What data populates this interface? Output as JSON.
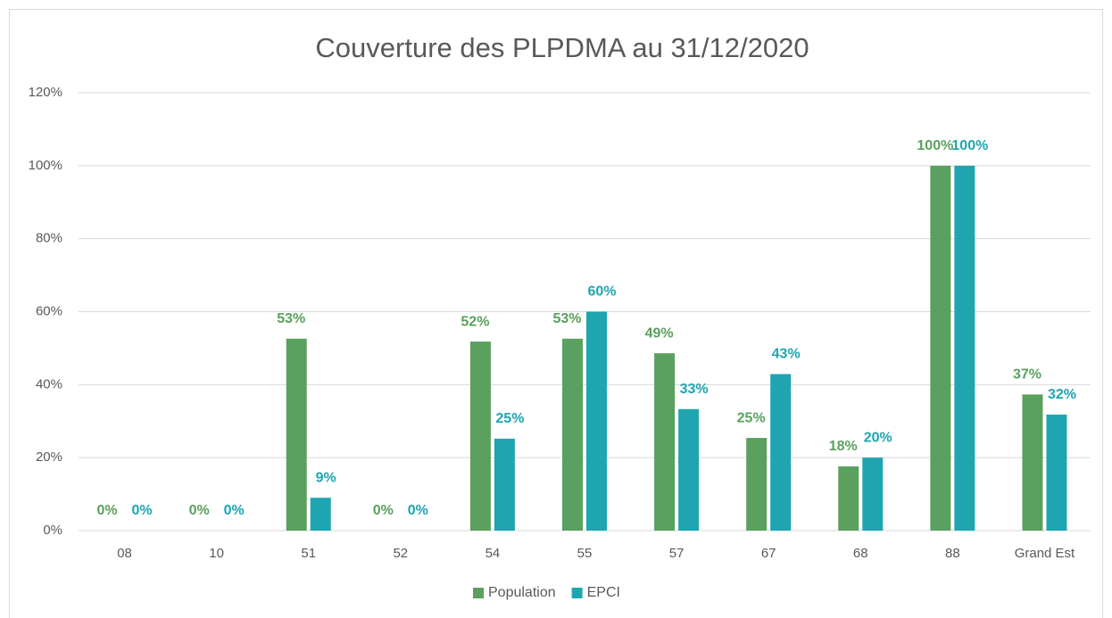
{
  "chart_data": {
    "type": "bar",
    "title": "Couverture des PLPDMA au 31/12/2020",
    "categories": [
      "08",
      "10",
      "51",
      "52",
      "54",
      "55",
      "57",
      "67",
      "68",
      "88",
      "Grand Est"
    ],
    "series": [
      {
        "name": "Population",
        "color": "#5aa05e",
        "values": [
          0,
          0,
          52.6,
          0,
          51.8,
          52.6,
          48.6,
          25.4,
          17.6,
          100,
          37.3
        ],
        "value_labels": [
          "0%",
          "0%",
          "53%",
          "0%",
          "52%",
          "53%",
          "49%",
          "25%",
          "18%",
          "100%",
          "37%"
        ]
      },
      {
        "name": "EPCI",
        "color": "#1fa5b0",
        "values": [
          0,
          0,
          9,
          0,
          25.2,
          60,
          33.3,
          42.9,
          20,
          100,
          31.8
        ],
        "value_labels": [
          "0%",
          "0%",
          "9%",
          "0%",
          "25%",
          "60%",
          "33%",
          "43%",
          "20%",
          "100%",
          "32%"
        ]
      }
    ],
    "ylim": [
      0,
      120
    ],
    "yticks": [
      {
        "value": 0,
        "label": "0%"
      },
      {
        "value": 20,
        "label": "20%"
      },
      {
        "value": 40,
        "label": "40%"
      },
      {
        "value": 60,
        "label": "60%"
      },
      {
        "value": 80,
        "label": "80%"
      },
      {
        "value": 100,
        "label": "100%"
      },
      {
        "value": 120,
        "label": "120%"
      }
    ],
    "grid": true,
    "legend": "bottom"
  }
}
